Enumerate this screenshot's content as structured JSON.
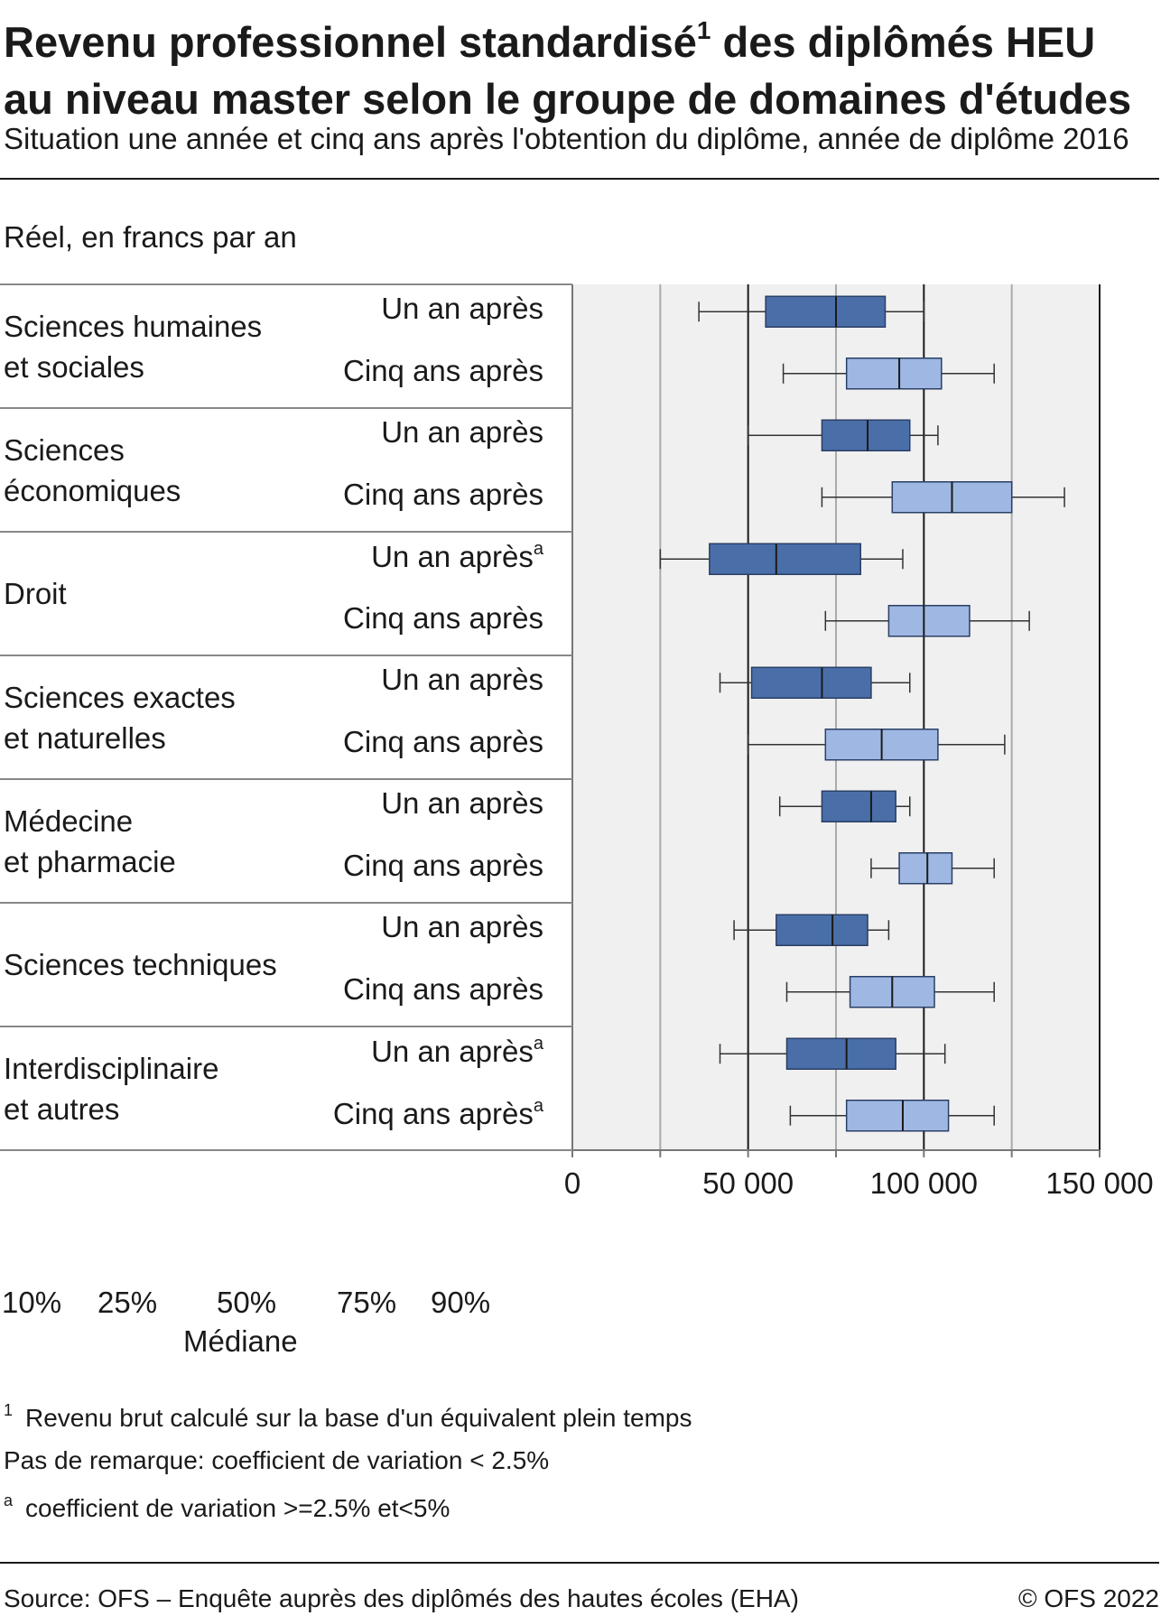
{
  "header": {
    "title_line1": "Revenu professionnel standardisé",
    "title_sup": "1",
    "title_line1b": " des diplômés HEU",
    "title_line2": "au niveau master selon le groupe de domaines d'études",
    "subtitle": "Situation une année et cinq ans après l'obtention du diplôme, année de diplôme 2016",
    "unit": "Réel, en francs par an"
  },
  "colors": {
    "dark_box": "#4a6ea8",
    "light_box": "#9fb8e3",
    "plot_bg": "#f0f0f0",
    "grid": "#aaaaaa"
  },
  "chart_data": {
    "type": "boxplot",
    "orientation": "horizontal",
    "xlim": [
      0,
      150000
    ],
    "xticks": [
      0,
      50000,
      100000,
      150000
    ],
    "xtick_labels": [
      "0",
      "50 000",
      "100 000",
      "150 000"
    ],
    "groups": [
      {
        "label_lines": [
          "Sciences humaines",
          "et sociales"
        ],
        "rows": [
          {
            "label": "Un an après",
            "note": "",
            "series": "Un an après",
            "p10": 36000,
            "p25": 55000,
            "p50": 75000,
            "p75": 89000,
            "p90": 100000
          },
          {
            "label": "Cinq ans après",
            "note": "",
            "series": "Cinq ans après",
            "p10": 60000,
            "p25": 78000,
            "p50": 93000,
            "p75": 105000,
            "p90": 120000
          }
        ]
      },
      {
        "label_lines": [
          "Sciences",
          "économiques"
        ],
        "rows": [
          {
            "label": "Un an après",
            "note": "",
            "series": "Un an après",
            "p10": 50000,
            "p25": 71000,
            "p50": 84000,
            "p75": 96000,
            "p90": 104000
          },
          {
            "label": "Cinq ans après",
            "note": "",
            "series": "Cinq ans après",
            "p10": 71000,
            "p25": 91000,
            "p50": 108000,
            "p75": 125000,
            "p90": 140000
          }
        ]
      },
      {
        "label_lines": [
          "Droit"
        ],
        "rows": [
          {
            "label": "Un an après",
            "note": "a",
            "series": "Un an après",
            "p10": 25000,
            "p25": 39000,
            "p50": 58000,
            "p75": 82000,
            "p90": 94000
          },
          {
            "label": "Cinq ans après",
            "note": "",
            "series": "Cinq ans après",
            "p10": 72000,
            "p25": 90000,
            "p50": 100000,
            "p75": 113000,
            "p90": 130000
          }
        ]
      },
      {
        "label_lines": [
          "Sciences exactes",
          "et naturelles"
        ],
        "rows": [
          {
            "label": "Un an après",
            "note": "",
            "series": "Un an après",
            "p10": 42000,
            "p25": 51000,
            "p50": 71000,
            "p75": 85000,
            "p90": 96000
          },
          {
            "label": "Cinq ans après",
            "note": "",
            "series": "Cinq ans après",
            "p10": 50000,
            "p25": 72000,
            "p50": 88000,
            "p75": 104000,
            "p90": 123000
          }
        ]
      },
      {
        "label_lines": [
          "Médecine",
          "et pharmacie"
        ],
        "rows": [
          {
            "label": "Un an après",
            "note": "",
            "series": "Un an après",
            "p10": 59000,
            "p25": 71000,
            "p50": 85000,
            "p75": 92000,
            "p90": 96000
          },
          {
            "label": "Cinq ans après",
            "note": "",
            "series": "Cinq ans après",
            "p10": 85000,
            "p25": 93000,
            "p50": 101000,
            "p75": 108000,
            "p90": 120000
          }
        ]
      },
      {
        "label_lines": [
          "Sciences techniques"
        ],
        "rows": [
          {
            "label": "Un an après",
            "note": "",
            "series": "Un an après",
            "p10": 46000,
            "p25": 58000,
            "p50": 74000,
            "p75": 84000,
            "p90": 90000
          },
          {
            "label": "Cinq ans après",
            "note": "",
            "series": "Cinq ans après",
            "p10": 61000,
            "p25": 79000,
            "p50": 91000,
            "p75": 103000,
            "p90": 120000
          }
        ]
      },
      {
        "label_lines": [
          "Interdisciplinaire",
          "et autres"
        ],
        "rows": [
          {
            "label": "Un an après",
            "note": "a",
            "series": "Un an après",
            "p10": 42000,
            "p25": 61000,
            "p50": 78000,
            "p75": 92000,
            "p90": 106000
          },
          {
            "label": "Cinq ans après",
            "note": "a",
            "series": "Cinq ans après",
            "p10": 62000,
            "p25": 78000,
            "p50": 94000,
            "p75": 107000,
            "p90": 120000
          }
        ]
      }
    ]
  },
  "legend": {
    "labels": [
      "10%",
      "25%",
      "50%",
      "75%",
      "90%"
    ],
    "median_label": "Médiane"
  },
  "footnotes": {
    "fn1_sup": "1",
    "fn1_text": "Revenu brut calculé sur la base d'un équivalent plein temps",
    "fn2_text": "Pas de remarque: coefficient de variation < 2.5%",
    "fn3_sup": "a",
    "fn3_text": "coefficient de variation >=2.5% et<5%"
  },
  "footer": {
    "source": "Source: OFS – Enquête auprès des diplômés des hautes écoles (EHA)",
    "copyright": "© OFS 2022"
  }
}
